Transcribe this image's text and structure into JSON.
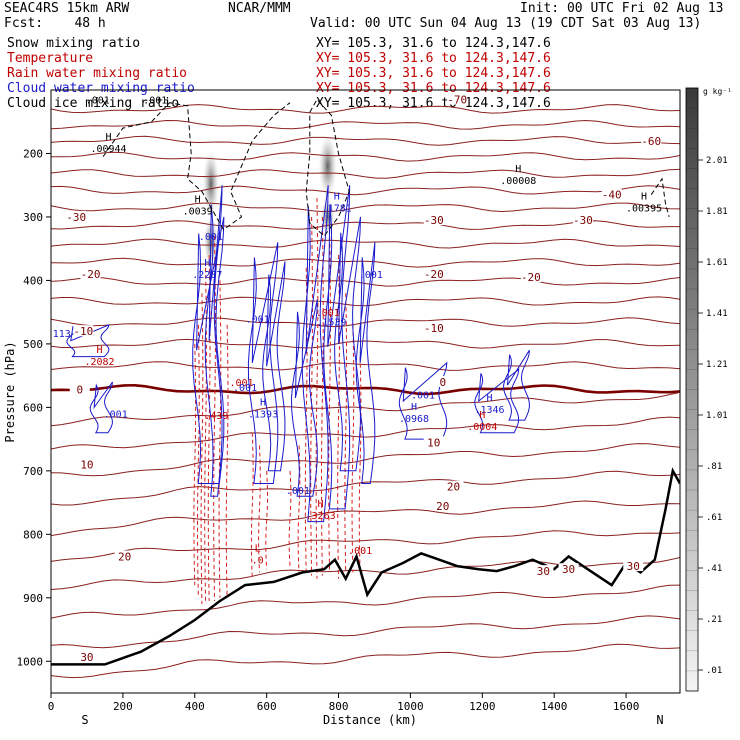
{
  "header": {
    "model": "SEAC4RS 15km ARW",
    "org": "NCAR/MMM",
    "init": "Init: 00 UTC Fri 02 Aug 13",
    "fcst": "Fcst:    48 h",
    "valid": "Valid: 00 UTC Sun 04 Aug 13 (19 CDT Sat 03 Aug 13)"
  },
  "fields": [
    {
      "name": "Snow mixing ratio",
      "xy": "XY= 105.3, 31.6 to 124.3,147.6",
      "color": "#000000"
    },
    {
      "name": "Temperature",
      "xy": "XY= 105.3, 31.6 to 124.3,147.6",
      "color": "#c00000"
    },
    {
      "name": "Rain water mixing ratio",
      "xy": "XY= 105.3, 31.6 to 124.3,147.6",
      "color": "#c00000"
    },
    {
      "name": "Cloud water mixing ratio",
      "xy": "XY= 105.3, 31.6 to 124.3,147.6",
      "color": "#1a1acc"
    },
    {
      "name": "Cloud ice mixing ratio",
      "xy": "XY= 105.3, 31.6 to 124.3,147.6",
      "color": "#000000"
    }
  ],
  "chart_data": {
    "type": "cross-section",
    "xlabel": "Distance (km)",
    "ylabel": "Pressure (hPa)",
    "xlim": [
      0,
      1750
    ],
    "ylim": [
      1050,
      100
    ],
    "xticks": [
      0,
      200,
      400,
      600,
      800,
      1000,
      1200,
      1400,
      1600
    ],
    "yticks": [
      1000,
      900,
      800,
      700,
      600,
      500,
      400,
      300,
      200
    ],
    "x_end_labels": {
      "left": "S",
      "right": "N"
    },
    "colorbar": {
      "unit": "g kg⁻¹",
      "ticks": [
        ".01",
        ".21",
        ".41",
        ".61",
        ".81",
        "1.01",
        "1.21",
        "1.41",
        "1.61",
        "1.81",
        "2.01"
      ]
    },
    "temperature_labels": [
      {
        "x": 1130,
        "p": 115,
        "t": "-70"
      },
      {
        "x": 1670,
        "p": 180,
        "t": "-60"
      },
      {
        "x": 1560,
        "p": 265,
        "t": "-40"
      },
      {
        "x": 70,
        "p": 300,
        "t": "-30"
      },
      {
        "x": 1065,
        "p": 305,
        "t": "-30"
      },
      {
        "x": 1480,
        "p": 305,
        "t": "-30"
      },
      {
        "x": 110,
        "p": 390,
        "t": "-20"
      },
      {
        "x": 1065,
        "p": 390,
        "t": "-20"
      },
      {
        "x": 1335,
        "p": 395,
        "t": "-20"
      },
      {
        "x": 90,
        "p": 480,
        "t": "-10"
      },
      {
        "x": 1065,
        "p": 475,
        "t": "-10"
      },
      {
        "x": 80,
        "p": 572,
        "t": "0"
      },
      {
        "x": 1090,
        "p": 560,
        "t": "0"
      },
      {
        "x": 1065,
        "p": 655,
        "t": "10"
      },
      {
        "x": 100,
        "p": 690,
        "t": "10"
      },
      {
        "x": 1120,
        "p": 725,
        "t": "20"
      },
      {
        "x": 1090,
        "p": 755,
        "t": "20"
      },
      {
        "x": 205,
        "p": 835,
        "t": "20"
      },
      {
        "x": 1370,
        "p": 858,
        "t": "30"
      },
      {
        "x": 1440,
        "p": 855,
        "t": "30"
      },
      {
        "x": 1620,
        "p": 850,
        "t": "30"
      },
      {
        "x": 100,
        "p": 993,
        "t": "30"
      }
    ],
    "extrema_labels": [
      {
        "x": 160,
        "p": 187,
        "h": "H",
        "v": ".00944",
        "color": "#000000"
      },
      {
        "x": 1300,
        "p": 237,
        "h": "H",
        "v": ".00008",
        "color": "#000000"
      },
      {
        "x": 1650,
        "p": 280,
        "h": "H",
        "v": ".00395",
        "color": "#000000"
      },
      {
        "x": 408,
        "p": 285,
        "h": "H",
        "v": ".0039",
        "color": "#000000"
      },
      {
        "x": 795,
        "p": 280,
        "h": "H",
        "v": ".1781",
        "color": "#1a1acc"
      },
      {
        "x": 435,
        "p": 385,
        "h": "H",
        "v": ".2287",
        "color": "#1a1acc"
      },
      {
        "x": 135,
        "p": 522,
        "h": "H",
        "v": ".2082",
        "color": "#c00000"
      },
      {
        "x": 1220,
        "p": 598,
        "h": "H",
        "v": ".1346",
        "color": "#1a1acc"
      },
      {
        "x": 1010,
        "p": 612,
        "h": "H",
        "v": ".0968",
        "color": "#1a1acc"
      },
      {
        "x": 590,
        "p": 605,
        "h": "H",
        "v": ".1393",
        "color": "#1a1acc"
      },
      {
        "x": 1200,
        "p": 625,
        "h": "H",
        "v": ".0004",
        "color": "#c00000"
      },
      {
        "x": 530,
        "p": 555,
        "h": "",
        "v": ".001",
        "color": "#c00000"
      },
      {
        "x": 575,
        "p": 835,
        "h": "L",
        "v": ".0",
        "color": "#c00000"
      },
      {
        "x": 750,
        "p": 765,
        "h": "H",
        "v": ".3263",
        "color": "#c00000"
      }
    ],
    "small_labels": [
      {
        "x": 130,
        "p": 115,
        "t": ".001",
        "color": "#000000"
      },
      {
        "x": 290,
        "p": 115,
        "t": ".001",
        "color": "#000000"
      },
      {
        "x": 445,
        "p": 330,
        "t": ".001",
        "color": "#1a1acc"
      },
      {
        "x": 575,
        "p": 460,
        "t": ".001",
        "color": "#1a1acc"
      },
      {
        "x": 30,
        "p": 483,
        "t": "113",
        "color": "#1a1acc"
      },
      {
        "x": 540,
        "p": 568,
        "t": ".001",
        "color": "#1a1acc"
      },
      {
        "x": 770,
        "p": 450,
        "t": ".001",
        "color": "#c00000"
      },
      {
        "x": 890,
        "p": 390,
        "t": ".001",
        "color": "#1a1acc"
      },
      {
        "x": 780,
        "p": 465,
        "t": ".1539",
        "color": "#1a1acc"
      },
      {
        "x": 1035,
        "p": 580,
        "t": ".001",
        "color": "#1a1acc"
      },
      {
        "x": 180,
        "p": 610,
        "t": ".001",
        "color": "#1a1acc"
      },
      {
        "x": 460,
        "p": 612,
        "t": ".439",
        "color": "#c00000"
      },
      {
        "x": 687,
        "p": 730,
        "t": ".001",
        "color": "#1a1acc"
      },
      {
        "x": 860,
        "p": 825,
        "t": ".001",
        "color": "#c00000"
      }
    ],
    "freezing_level_p": 572,
    "terrain_note": "black terrain outline"
  }
}
